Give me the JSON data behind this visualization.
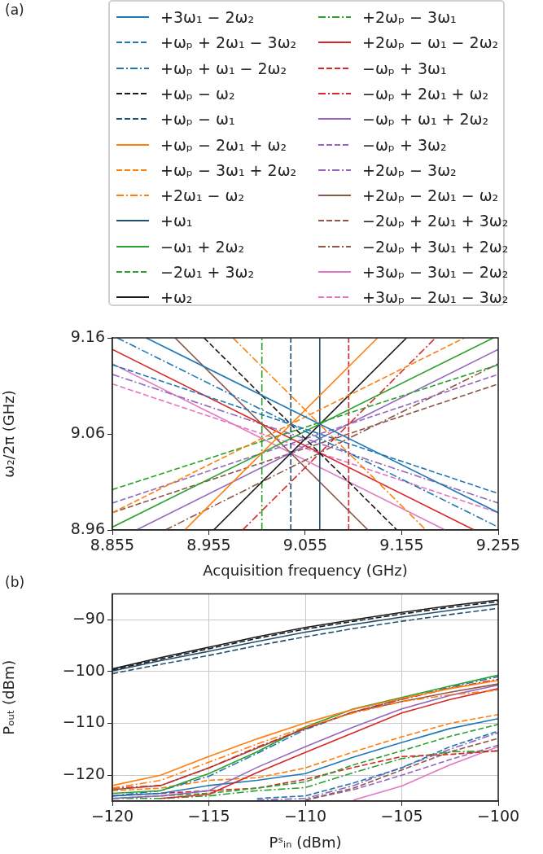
{
  "chart_data": [
    {
      "type": "line",
      "annotations": [
        "(a)"
      ],
      "xlabel": "Acquisition frequency (GHz)",
      "ylabel": "ω₂/2π (GHz)",
      "xlim": [
        8.855,
        9.255
      ],
      "xticks": [
        8.855,
        8.955,
        9.055,
        9.155,
        9.255
      ],
      "ylim": [
        8.96,
        9.16
      ],
      "yticks": [
        8.96,
        9.06,
        9.16
      ],
      "grid": false,
      "legend": "top",
      "series": [
        {
          "name": "+3ω₁ − 2ω₂",
          "color": "#1f77b4",
          "line_style": "solid",
          "x": [
            8.89,
            9.255
          ],
          "values": [
            9.16,
            8.978
          ]
        },
        {
          "name": "+ωₚ + 2ω₁ − 3ω₂",
          "color": "#1f77b4",
          "line_style": "dashed",
          "x": [
            8.855,
            9.255
          ],
          "values": [
            9.132,
            8.998
          ]
        },
        {
          "name": "+ωₚ + ω₁ − 2ω₂",
          "color": "#1f77b4",
          "line_style": "dashdot",
          "x": [
            8.86,
            9.255
          ],
          "values": [
            9.16,
            8.963
          ]
        },
        {
          "name": "+ωₚ − ω₂",
          "color": "#1a1a1a",
          "line_style": "dashed",
          "x": [
            8.95,
            9.15
          ],
          "values": [
            9.16,
            8.96
          ]
        },
        {
          "name": "+ωₚ − ω₁",
          "color": "#23506f",
          "line_style": "dashed",
          "x": [
            9.04,
            9.04
          ],
          "values": [
            8.96,
            9.16
          ]
        },
        {
          "name": "+ωₚ − 2ω₁ + ω₂",
          "color": "#ff7f0e",
          "line_style": "solid",
          "x": [
            8.93,
            9.13
          ],
          "values": [
            8.96,
            9.16
          ]
        },
        {
          "name": "+ωₚ − 3ω₁ + 2ω₂",
          "color": "#ff7f0e",
          "line_style": "dashed",
          "x": [
            8.855,
            9.22
          ],
          "values": [
            8.978,
            9.16
          ]
        },
        {
          "name": "+2ω₁ − ω₂",
          "color": "#ff7f0e",
          "line_style": "dashdot",
          "x": [
            8.98,
            9.18
          ],
          "values": [
            9.16,
            8.96
          ]
        },
        {
          "name": "+ω₁",
          "color": "#23506f",
          "line_style": "solid",
          "x": [
            9.07,
            9.07
          ],
          "values": [
            8.96,
            9.16
          ]
        },
        {
          "name": "−ω₁ + 2ω₂",
          "color": "#2ca02c",
          "line_style": "solid",
          "x": [
            8.855,
            9.25
          ],
          "values": [
            8.963,
            9.16
          ]
        },
        {
          "name": "−2ω₁ + 3ω₂",
          "color": "#2ca02c",
          "line_style": "dashed",
          "x": [
            8.855,
            9.255
          ],
          "values": [
            9.002,
            9.132
          ]
        },
        {
          "name": "+ω₂",
          "color": "#1a1a1a",
          "line_style": "solid",
          "x": [
            8.96,
            9.16
          ],
          "values": [
            8.96,
            9.16
          ]
        },
        {
          "name": "+2ωₚ − 3ω₁",
          "color": "#2ca02c",
          "line_style": "dashdot",
          "x": [
            9.01,
            9.01
          ],
          "values": [
            8.96,
            9.16
          ]
        },
        {
          "name": "+2ωₚ − ω₁ − 2ω₂",
          "color": "#d62728",
          "line_style": "solid",
          "x": [
            8.855,
            9.23
          ],
          "values": [
            9.148,
            8.96
          ]
        },
        {
          "name": "−ωₚ + 3ω₁",
          "color": "#d62728",
          "line_style": "dashed",
          "x": [
            9.1,
            9.1
          ],
          "values": [
            8.96,
            9.16
          ]
        },
        {
          "name": "−ωₚ + 2ω₁ + ω₂",
          "color": "#d62728",
          "line_style": "dashdot",
          "x": [
            8.99,
            9.19
          ],
          "values": [
            8.96,
            9.16
          ]
        },
        {
          "name": "−ωₚ + ω₁ + 2ω₂",
          "color": "#9467bd",
          "line_style": "solid",
          "x": [
            8.88,
            9.255
          ],
          "values": [
            8.96,
            9.148
          ]
        },
        {
          "name": "−ωₚ + 3ω₂",
          "color": "#9467bd",
          "line_style": "dashed",
          "x": [
            8.855,
            9.255
          ],
          "values": [
            8.988,
            9.122
          ]
        },
        {
          "name": "+2ωₚ − 3ω₂",
          "color": "#9467bd",
          "line_style": "dashdot",
          "x": [
            8.855,
            9.255
          ],
          "values": [
            9.122,
            8.988
          ]
        },
        {
          "name": "+2ωₚ − 2ω₁ − ω₂",
          "color": "#8c564b",
          "line_style": "solid",
          "x": [
            8.92,
            9.12
          ],
          "values": [
            9.16,
            8.96
          ]
        },
        {
          "name": "−2ωₚ + 2ω₁ + 3ω₂",
          "color": "#8c564b",
          "line_style": "dashed",
          "x": [
            8.855,
            9.255
          ],
          "values": [
            8.978,
            9.112
          ]
        },
        {
          "name": "−2ωₚ + 3ω₁ + 2ω₂",
          "color": "#8c564b",
          "line_style": "dashdot",
          "x": [
            8.91,
            9.255
          ],
          "values": [
            8.96,
            9.133
          ]
        },
        {
          "name": "+3ωₚ − 3ω₁ − 2ω₂",
          "color": "#e377c2",
          "line_style": "solid",
          "x": [
            8.855,
            9.2
          ],
          "values": [
            9.133,
            8.96
          ]
        },
        {
          "name": "+3ωₚ − 2ω₁ − 3ω₂",
          "color": "#e377c2",
          "line_style": "dashed",
          "x": [
            8.855,
            9.255
          ],
          "values": [
            9.112,
            8.978
          ]
        }
      ]
    },
    {
      "type": "line",
      "annotations": [
        "(b)"
      ],
      "xlabel": "Pˢᵢₙ (dBm)",
      "ylabel": "Pₒᵤₜ (dBm)",
      "xlim": [
        -120,
        -100
      ],
      "xticks": [
        {
          "value": -120,
          "label": "−120"
        },
        {
          "value": -115,
          "label": "−115"
        },
        {
          "value": -110,
          "label": "−110"
        },
        {
          "value": -105,
          "label": "−105"
        },
        {
          "value": -100,
          "label": "−100"
        }
      ],
      "ylim": [
        -125,
        -85
      ],
      "yticks": [
        {
          "value": -120,
          "label": "−120"
        },
        {
          "value": -110,
          "label": "−110"
        },
        {
          "value": -100,
          "label": "−100"
        },
        {
          "value": -90,
          "label": "−90"
        }
      ],
      "grid": true,
      "x": [
        -120,
        -117.5,
        -115,
        -112.5,
        -110,
        -107.5,
        -105,
        -102.5,
        -100
      ],
      "series": [
        {
          "color": "#1a1a1a",
          "line_style": "solid",
          "values": [
            -99.5,
            -97.3,
            -95.3,
            -93.3,
            -91.5,
            -90.0,
            -88.6,
            -87.3,
            -86.2
          ]
        },
        {
          "color": "#1a1a1a",
          "line_style": "dashed",
          "values": [
            -99.7,
            -97.6,
            -95.6,
            -93.6,
            -91.8,
            -90.3,
            -88.9,
            -87.6,
            -86.5
          ]
        },
        {
          "color": "#23506f",
          "line_style": "solid",
          "values": [
            -99.9,
            -97.9,
            -96.1,
            -94.2,
            -92.4,
            -90.9,
            -89.5,
            -88.2,
            -87.0
          ]
        },
        {
          "color": "#23506f",
          "line_style": "dashed",
          "values": [
            -100.4,
            -98.6,
            -96.9,
            -95.0,
            -93.3,
            -91.7,
            -90.3,
            -89.0,
            -87.8
          ]
        },
        {
          "color": "#ff7f0e",
          "line_style": "solid",
          "values": [
            -122,
            -120,
            -116.4,
            -113,
            -109.9,
            -107.3,
            -105.2,
            -103.3,
            -101.7
          ]
        },
        {
          "color": "#ff7f0e",
          "line_style": "dashdot",
          "values": [
            -122.5,
            -121,
            -117.5,
            -114,
            -110.7,
            -108,
            -105.8,
            -104.5,
            -103.6
          ]
        },
        {
          "color": "#d62728",
          "line_style": "dashdot",
          "values": [
            -122.5,
            -122,
            -118.6,
            -114.6,
            -111,
            -107.8,
            -105.4,
            -103.2,
            -101.5
          ]
        },
        {
          "color": "#8c564b",
          "line_style": "solid",
          "values": [
            -122.8,
            -122,
            -118.6,
            -114.8,
            -111,
            -107.8,
            -105.8,
            -104,
            -102.4
          ]
        },
        {
          "color": "#2ca02c",
          "line_style": "solid",
          "values": [
            -123.5,
            -123,
            -119.7,
            -115.5,
            -110.7,
            -107.2,
            -105,
            -102.8,
            -100.7
          ]
        },
        {
          "color": "#1f77b4",
          "line_style": "dashdot",
          "values": [
            -124,
            -123,
            -120.2,
            -115.8,
            -111.2,
            -107.8,
            -105.3,
            -103,
            -101
          ]
        },
        {
          "color": "#9467bd",
          "line_style": "solid",
          "values": [
            -124.5,
            -124,
            -123,
            -118.5,
            -114.5,
            -110.7,
            -107.2,
            -104.6,
            -102.6
          ]
        },
        {
          "color": "#d62728",
          "line_style": "solid",
          "values": [
            null,
            -124.5,
            -123.7,
            -119.5,
            -115.6,
            -111.8,
            -108,
            -105.4,
            -103.3
          ]
        },
        {
          "color": "#ff7f0e",
          "line_style": "dashed",
          "values": [
            -123,
            -122.5,
            -121,
            -120.5,
            -118.6,
            -115.5,
            -112.6,
            -110,
            -108.3
          ]
        },
        {
          "color": "#1f77b4",
          "line_style": "solid",
          "values": [
            -124,
            -123.5,
            -122,
            -121,
            -119.7,
            -116.5,
            -113.7,
            -111,
            -109.1
          ]
        },
        {
          "color": "#2ca02c",
          "line_style": "dashed",
          "values": [
            -124.5,
            -124,
            -123.5,
            -122.5,
            -121.3,
            -118,
            -115.3,
            -112.5,
            -110.2
          ]
        },
        {
          "color": "#d62728",
          "line_style": "dashed",
          "values": [
            -124,
            -123.5,
            -123,
            -122.5,
            -120.8,
            -118.5,
            -116.4,
            -116,
            -115.3
          ]
        },
        {
          "color": "#2ca02c",
          "line_style": "dashdot",
          "values": [
            -124.5,
            -124.5,
            -124,
            -123,
            -122.4,
            -119.5,
            -116.8,
            -115.5,
            -115.3
          ]
        },
        {
          "color": "#1f77b4",
          "line_style": "dashed",
          "values": [
            null,
            null,
            null,
            -124.5,
            -124,
            -121.5,
            -118.6,
            -114.5,
            -111.5
          ]
        },
        {
          "color": "#9467bd",
          "line_style": "dashdot",
          "values": [
            null,
            null,
            null,
            -124.8,
            -124.5,
            -122,
            -118.5,
            -115,
            -111.8
          ]
        },
        {
          "color": "#8c564b",
          "line_style": "dashed",
          "values": [
            null,
            null,
            null,
            null,
            -124.8,
            -122.5,
            -119,
            -115.5,
            -112.9
          ]
        },
        {
          "color": "#9467bd",
          "line_style": "dashed",
          "values": [
            null,
            null,
            null,
            null,
            -124.8,
            -122.8,
            -120,
            -117,
            -114.2
          ]
        },
        {
          "color": "#e377c2",
          "line_style": "solid",
          "values": [
            null,
            null,
            null,
            null,
            null,
            -124.8,
            -122.1,
            -118,
            -114.5
          ]
        }
      ]
    }
  ]
}
